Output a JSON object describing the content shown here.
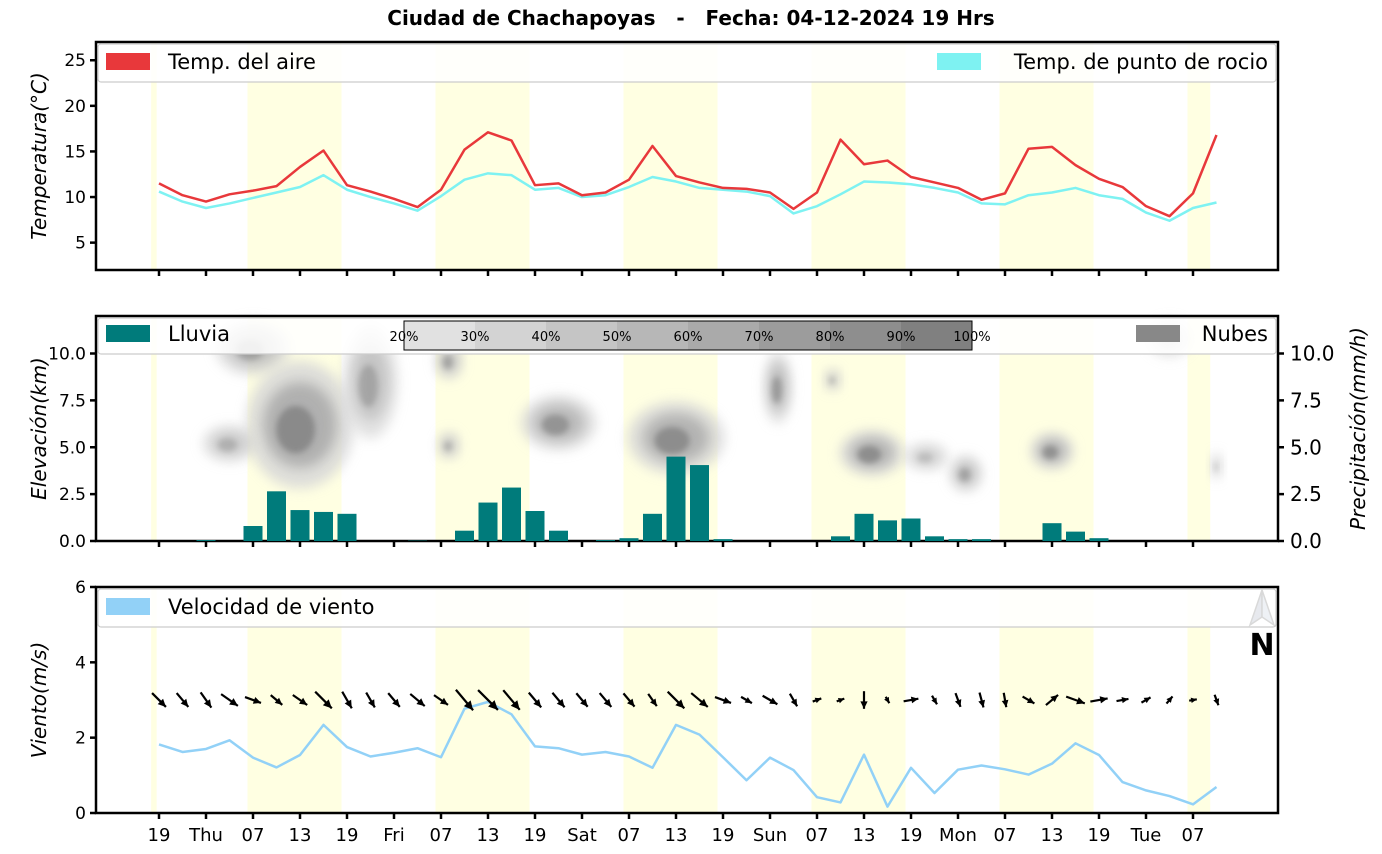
{
  "title": "Ciudad de Chachapoyas   -   Fecha: 04-12-2024 19 Hrs",
  "x_tick_labels": [
    "19",
    "Thu",
    "07",
    "13",
    "19",
    "Fri",
    "07",
    "13",
    "19",
    "Sat",
    "07",
    "13",
    "19",
    "Sun",
    "07",
    "13",
    "19",
    "Mon",
    "07",
    "13",
    "19",
    "Tue",
    "07"
  ],
  "colors": {
    "air_temp": "#e8383b",
    "dew_point": "#7ef2f2",
    "rain": "#007b7b",
    "clouds": "#888888",
    "wind": "#92d1f7",
    "daylight_band": "#ffffe2"
  },
  "north_label": "N",
  "chart_data": [
    {
      "type": "line",
      "ylabel": "Temperatura(°C)",
      "ylim": [
        2,
        27
      ],
      "yticks": [
        "5",
        "10",
        "15",
        "20",
        "25"
      ],
      "legend_placement": "top",
      "x_step_hours": 3,
      "series": [
        {
          "name": "Temp. del aire",
          "values": [
            11.5,
            10.2,
            9.5,
            10.3,
            10.7,
            11.2,
            13.3,
            15.1,
            11.3,
            10.6,
            9.8,
            8.9,
            10.8,
            15.2,
            17.1,
            16.2,
            11.3,
            11.5,
            10.2,
            10.5,
            11.9,
            15.6,
            12.3,
            11.6,
            11,
            10.9,
            10.5,
            8.7,
            10.5,
            16.3,
            13.6,
            14,
            12.2,
            11.6,
            11,
            9.7,
            10.4,
            15.3,
            15.5,
            13.5,
            12,
            11.1,
            9,
            7.9,
            10.4,
            16.8
          ]
        },
        {
          "name": "Temp. de punto de rocio",
          "values": [
            10.6,
            9.5,
            8.8,
            9.3,
            9.9,
            10.5,
            11.1,
            12.4,
            10.8,
            10,
            9.3,
            8.5,
            10.1,
            11.9,
            12.6,
            12.4,
            10.8,
            11,
            10,
            10.2,
            11.1,
            12.2,
            11.7,
            11,
            10.8,
            10.6,
            10.1,
            8.2,
            9,
            10.3,
            11.7,
            11.6,
            11.4,
            11,
            10.5,
            9.3,
            9.2,
            10.2,
            10.5,
            11,
            10.2,
            9.8,
            8.3,
            7.4,
            8.8,
            9.4
          ]
        }
      ]
    },
    {
      "type": "bar",
      "ylabel": "Elevación(km)",
      "ylabel_right": "Precipitación(mm/h)",
      "ylim": [
        0,
        12
      ],
      "yticks": [
        "0.0",
        "2.5",
        "5.0",
        "7.5",
        "10.0"
      ],
      "series": [
        {
          "name": "Lluvia",
          "values": [
            0,
            0,
            0.05,
            0,
            0.8,
            2.65,
            1.65,
            1.55,
            1.45,
            0,
            0,
            0.02,
            0,
            0.55,
            2.05,
            2.85,
            1.6,
            0.55,
            0,
            0.05,
            0.15,
            1.45,
            4.5,
            4.05,
            0.1,
            0,
            0,
            0,
            0,
            0.25,
            1.45,
            1.1,
            1.2,
            0.25,
            0.1,
            0.1,
            0,
            0,
            0.95,
            0.5,
            0.15,
            0,
            0,
            0,
            0,
            0
          ]
        }
      ],
      "cloud_legend": "Nubes",
      "cloud_colorbar_ticks": [
        "20%",
        "30%",
        "40%",
        "50%",
        "60%",
        "70%",
        "80%",
        "90%",
        "100%"
      ],
      "cloud_blobs": [
        {
          "hour": 12,
          "elev_km": 10.3,
          "d_hours": 7,
          "d_km": 1.2,
          "density": 0.55
        },
        {
          "hour": 18,
          "elev_km": 6.2,
          "d_hours": 10,
          "d_km": 2.8,
          "density": 0.85
        },
        {
          "hour": 9,
          "elev_km": 5.2,
          "d_hours": 5,
          "d_km": 0.8,
          "density": 0.4
        },
        {
          "hour": 27,
          "elev_km": 8.5,
          "d_hours": 5,
          "d_km": 2.5,
          "density": 0.5
        },
        {
          "hour": 37,
          "elev_km": 9.6,
          "d_hours": 2.5,
          "d_km": 0.8,
          "density": 0.55
        },
        {
          "hour": 37,
          "elev_km": 5.1,
          "d_hours": 2,
          "d_km": 0.6,
          "density": 0.45
        },
        {
          "hour": 51,
          "elev_km": 6.3,
          "d_hours": 7,
          "d_km": 1.2,
          "density": 0.7
        },
        {
          "hour": 66,
          "elev_km": 5.5,
          "d_hours": 9,
          "d_km": 1.6,
          "density": 0.8
        },
        {
          "hour": 79,
          "elev_km": 8.2,
          "d_hours": 2.5,
          "d_km": 1.6,
          "density": 0.65
        },
        {
          "hour": 86,
          "elev_km": 8.6,
          "d_hours": 1.5,
          "d_km": 0.5,
          "density": 0.4
        },
        {
          "hour": 91,
          "elev_km": 4.7,
          "d_hours": 6,
          "d_km": 1.0,
          "density": 0.8
        },
        {
          "hour": 103,
          "elev_km": 3.6,
          "d_hours": 3,
          "d_km": 0.8,
          "density": 0.55
        },
        {
          "hour": 98,
          "elev_km": 4.5,
          "d_hours": 4,
          "d_km": 0.6,
          "density": 0.3
        },
        {
          "hour": 114,
          "elev_km": 4.8,
          "d_hours": 4,
          "d_km": 0.8,
          "density": 0.75
        },
        {
          "hour": 129,
          "elev_km": 10.8,
          "d_hours": 4,
          "d_km": 0.8,
          "density": 0.15
        },
        {
          "hour": 135,
          "elev_km": 4.0,
          "d_hours": 1,
          "d_km": 0.6,
          "density": 0.3
        }
      ]
    },
    {
      "type": "line",
      "ylabel": "Viento(m/s)",
      "ylim": [
        0,
        6
      ],
      "yticks": [
        "0",
        "2",
        "4",
        "6"
      ],
      "series": [
        {
          "name": "Velocidad de viento",
          "values": [
            1.82,
            1.62,
            1.7,
            1.93,
            1.47,
            1.21,
            1.54,
            2.34,
            1.75,
            1.5,
            1.6,
            1.72,
            1.48,
            2.77,
            2.95,
            2.62,
            1.77,
            1.72,
            1.55,
            1.62,
            1.5,
            1.2,
            2.34,
            2.08,
            1.48,
            0.87,
            1.47,
            1.14,
            0.42,
            0.28,
            1.55,
            0.17,
            1.2,
            0.53,
            1.15,
            1.26,
            1.16,
            1.02,
            1.31,
            1.85,
            1.54,
            0.82,
            0.6,
            0.45,
            0.23,
            0.69
          ]
        }
      ],
      "wind_dir_deg": [
        315,
        320,
        325,
        305,
        290,
        310,
        305,
        315,
        330,
        330,
        320,
        310,
        305,
        320,
        315,
        320,
        320,
        320,
        320,
        320,
        320,
        325,
        315,
        310,
        290,
        300,
        300,
        330,
        250,
        250,
        360,
        330,
        260,
        330,
        340,
        345,
        350,
        300,
        230,
        290,
        260,
        260,
        240,
        220,
        260,
        340
      ]
    }
  ]
}
